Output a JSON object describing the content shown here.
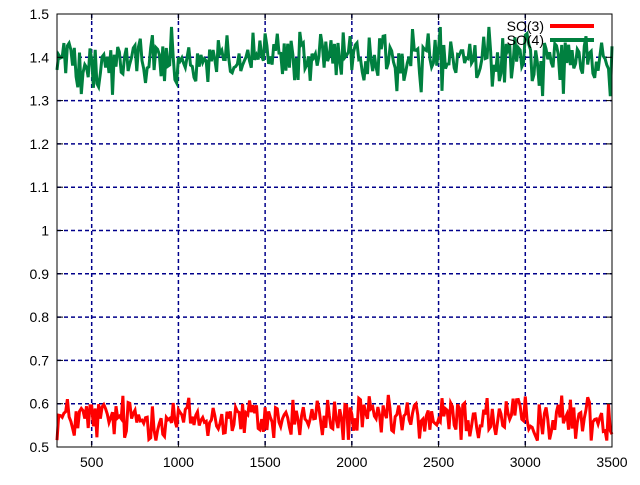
{
  "chart_data": {
    "type": "line",
    "title": "",
    "xlabel": "",
    "ylabel": "",
    "xlim": [
      300,
      3500
    ],
    "ylim": [
      0.5,
      1.5
    ],
    "xticks": [
      500,
      1000,
      1500,
      2000,
      2500,
      3000,
      3500
    ],
    "yticks": [
      0.5,
      0.6,
      0.7,
      0.8,
      0.9,
      1,
      1.1,
      1.2,
      1.3,
      1.4,
      1.5
    ],
    "grid": true,
    "grid_color": "#00008b",
    "legend_position": "top-right",
    "series": [
      {
        "name": "SO(3)",
        "color": "#ff0000",
        "x_start": 300,
        "x_end": 3500,
        "x_step": 10,
        "mean": 0.565,
        "noise_amplitude": 0.04,
        "min": 0.515,
        "max": 0.62
      },
      {
        "name": "SO(4)",
        "color": "#00803f",
        "x_start": 300,
        "x_end": 3500,
        "x_step": 10,
        "mean": 1.395,
        "noise_amplitude": 0.05,
        "min": 1.31,
        "max": 1.47
      }
    ]
  }
}
